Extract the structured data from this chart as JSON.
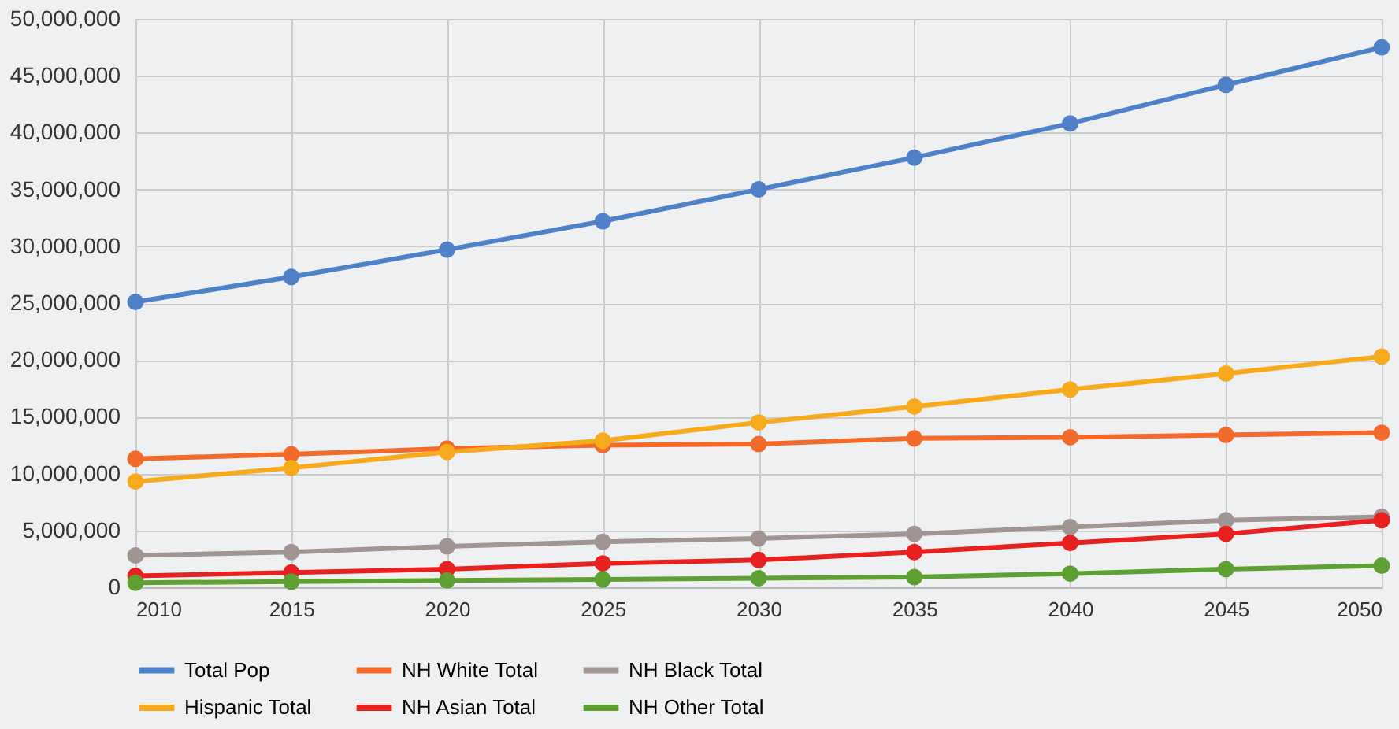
{
  "chart_data": {
    "type": "line",
    "x": [
      2010,
      2015,
      2020,
      2025,
      2030,
      2035,
      2040,
      2045,
      2050
    ],
    "xlim": [
      2010,
      2050
    ],
    "xticks": [
      2010,
      2015,
      2020,
      2025,
      2030,
      2035,
      2040,
      2045,
      2050
    ],
    "ylim": [
      0,
      50000000
    ],
    "yticks": [
      0,
      {
        "value": 5000000,
        "label": "5,000,000"
      },
      {
        "value": 10000000,
        "label": "10,000,000"
      },
      {
        "value": 15000000,
        "label": "15,000,000"
      },
      {
        "value": 20000000,
        "label": "20,000,000"
      },
      {
        "value": 25000000,
        "label": "25,000,000"
      },
      {
        "value": 30000000,
        "label": "30,000,000"
      },
      {
        "value": 35000000,
        "label": "35,000,000"
      },
      {
        "value": 40000000,
        "label": "40,000,000"
      },
      {
        "value": 45000000,
        "label": "45,000,000"
      },
      {
        "value": 50000000,
        "label": "50,000,000"
      }
    ],
    "grid": true,
    "legend": "bottom",
    "marker": "circle",
    "line_style": "solid",
    "series": [
      {
        "name": "Total Pop",
        "color": "#4f81c9",
        "values": [
          25100000,
          27300000,
          29700000,
          32200000,
          35000000,
          37800000,
          40800000,
          44200000,
          47500000
        ]
      },
      {
        "name": "NH White Total",
        "color": "#f26b2a",
        "values": [
          11300000,
          11700000,
          12200000,
          12500000,
          12600000,
          13100000,
          13200000,
          13400000,
          13600000
        ]
      },
      {
        "name": "NH Black Total",
        "color": "#a09593",
        "values": [
          2800000,
          3100000,
          3600000,
          4000000,
          4300000,
          4700000,
          5300000,
          5900000,
          6200000
        ]
      },
      {
        "name": "Hispanic Total",
        "color": "#f7aa1c",
        "values": [
          9300000,
          10500000,
          11900000,
          12900000,
          14500000,
          15900000,
          17400000,
          18800000,
          20300000
        ]
      },
      {
        "name": "NH Asian Total",
        "color": "#e8201f",
        "values": [
          1000000,
          1300000,
          1600000,
          2100000,
          2400000,
          3100000,
          3900000,
          4700000,
          5900000
        ]
      },
      {
        "name": "NH Other Total",
        "color": "#5ea032",
        "values": [
          400000,
          500000,
          600000,
          700000,
          800000,
          900000,
          1200000,
          1600000,
          1900000
        ]
      }
    ]
  }
}
